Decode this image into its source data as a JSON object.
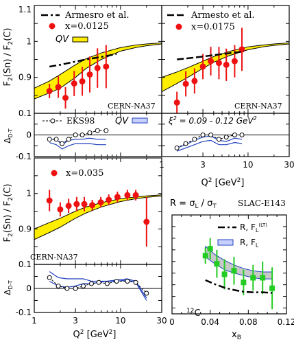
{
  "colors": {
    "data": "#ee1111",
    "band_fill": "#ffee00",
    "qv_blue": "#1f3fbf",
    "green": "#22cc22",
    "band_grey": "#c8c8c8",
    "text": "#000000"
  },
  "labels": {
    "ylabel_ratio": "F_2(Sn) / F_2(C)",
    "ylabel_delta": "Δ_D-T",
    "xlabel_q2": "Q^2 [GeV^2]",
    "xlabel_xb": "x_B",
    "armesto": "Armesro et al.",
    "armesto_b": "Armesto et al.",
    "qv": "QV",
    "eks98": "EKS98",
    "xi2": "ξ^2 = 0.09 - 0.12 GeV^2",
    "slac": "SLAC-E143",
    "r_def": "R = σ_L / σ_T",
    "r_lt": "R, F_L^(LT)",
    "r_fl": "R, F_L",
    "carbon": "^12C",
    "cern_na37": "CERN-NA37"
  },
  "chart_data": [
    {
      "type": "scatter",
      "panel": "ratio, x=0.0125",
      "x_scale": "log",
      "xlim": [
        1,
        30
      ],
      "ylim": [
        0.8,
        1.1
      ],
      "xticks": [
        1,
        3,
        10,
        30
      ],
      "yticks": [
        0.9,
        1
      ],
      "series": [
        {
          "name": "x=0.0125",
          "style": "points",
          "x": [
            1.5,
            1.9,
            2.3,
            2.9,
            3.6,
            4.4,
            5.4,
            6.8
          ],
          "y": [
            0.862,
            0.873,
            0.843,
            0.883,
            0.889,
            0.908,
            0.926,
            0.93
          ],
          "err": [
            0.02,
            0.03,
            0.03,
            0.035,
            0.04,
            0.05,
            0.055,
            0.06
          ]
        },
        {
          "name": "Armesro et al.",
          "style": "dash",
          "x": [
            1.5,
            2,
            3,
            4,
            6,
            9
          ],
          "y": [
            0.93,
            0.935,
            0.944,
            0.95,
            0.957,
            0.965
          ]
        },
        {
          "name": "QV",
          "style": "band",
          "x": [
            1.0,
            1.5,
            2,
            3,
            4,
            6,
            10,
            15,
            20,
            30
          ],
          "lo": [
            0.84,
            0.857,
            0.87,
            0.9,
            0.925,
            0.95,
            0.973,
            0.983,
            0.988,
            0.993
          ],
          "hi": [
            0.87,
            0.89,
            0.908,
            0.935,
            0.952,
            0.968,
            0.983,
            0.99,
            0.993,
            0.996
          ]
        }
      ]
    },
    {
      "type": "scatter",
      "panel": "ratio, x=0.0175",
      "x_scale": "log",
      "xlim": [
        1,
        30
      ],
      "ylim": [
        0.8,
        1.1
      ],
      "series": [
        {
          "name": "x=0.0175",
          "style": "points",
          "x": [
            1.5,
            1.9,
            2.4,
            3.0,
            3.7,
            4.6,
            5.6,
            7.0,
            8.5
          ],
          "y": [
            0.83,
            0.882,
            0.89,
            0.93,
            0.945,
            0.94,
            0.935,
            0.945,
            0.978
          ],
          "err": [
            0.03,
            0.035,
            0.035,
            0.035,
            0.04,
            0.045,
            0.045,
            0.045,
            0.06
          ]
        },
        {
          "name": "Armesto et al.",
          "style": "dash",
          "x": [
            1.5,
            2,
            3,
            4,
            6,
            9
          ],
          "y": [
            0.95,
            0.953,
            0.958,
            0.962,
            0.967,
            0.972
          ]
        },
        {
          "name": "QV",
          "style": "band",
          "x": [
            1.0,
            1.5,
            2,
            3,
            4,
            6,
            10,
            15,
            20,
            30
          ],
          "lo": [
            0.86,
            0.883,
            0.9,
            0.925,
            0.942,
            0.96,
            0.977,
            0.985,
            0.989,
            0.993
          ],
          "hi": [
            0.9,
            0.915,
            0.927,
            0.945,
            0.958,
            0.972,
            0.985,
            0.99,
            0.993,
            0.996
          ]
        }
      ]
    },
    {
      "type": "line",
      "panel": "delta, x=0.0125",
      "x_scale": "log",
      "xlim": [
        1,
        30
      ],
      "ylim": [
        -0.1,
        0.1
      ],
      "yticks": [
        -0.1,
        0,
        0.1
      ],
      "series": [
        {
          "name": "EKS98",
          "style": "circles",
          "x": [
            1.5,
            1.8,
            2.1,
            2.5,
            3.0,
            3.6,
            4.4,
            5.4,
            6.8
          ],
          "y": [
            -0.02,
            -0.02,
            -0.04,
            -0.02,
            0.0,
            0.0,
            0.01,
            0.02,
            0.02
          ]
        },
        {
          "name": "QV",
          "style": "blue",
          "x": [
            1.5,
            1.8,
            2.1,
            2.5,
            3.0,
            3.6,
            4.4,
            5.4,
            6.8
          ],
          "lo": [
            -0.035,
            -0.045,
            -0.065,
            -0.05,
            -0.04,
            -0.04,
            -0.04,
            -0.045,
            -0.045
          ],
          "hi": [
            -0.02,
            -0.02,
            -0.045,
            -0.025,
            -0.02,
            -0.02,
            -0.015,
            -0.02,
            -0.02
          ]
        }
      ]
    },
    {
      "type": "line",
      "panel": "delta, x=0.0175",
      "x_scale": "log",
      "xlim": [
        1,
        30
      ],
      "ylim": [
        -0.1,
        0.1
      ],
      "series": [
        {
          "name": "EKS98",
          "style": "circles",
          "x": [
            1.5,
            1.9,
            2.4,
            3.0,
            3.7,
            4.6,
            5.6,
            7.0,
            8.5
          ],
          "y": [
            -0.06,
            -0.04,
            -0.02,
            0.0,
            0.0,
            -0.02,
            -0.01,
            0.0,
            0.0
          ]
        },
        {
          "name": "QV",
          "style": "blue",
          "x": [
            1.5,
            1.9,
            2.4,
            3.0,
            3.7,
            4.6,
            5.6,
            7.0,
            8.5
          ],
          "lo": [
            -0.075,
            -0.06,
            -0.045,
            -0.03,
            -0.025,
            -0.045,
            -0.045,
            -0.035,
            -0.04
          ],
          "hi": [
            -0.06,
            -0.045,
            -0.025,
            -0.01,
            -0.005,
            -0.025,
            -0.03,
            -0.015,
            -0.02
          ]
        }
      ]
    },
    {
      "type": "scatter",
      "panel": "ratio, x=0.035",
      "x_scale": "log",
      "xlim": [
        1,
        30
      ],
      "ylim": [
        0.8,
        1.1
      ],
      "series": [
        {
          "name": "x=0.035",
          "style": "points",
          "x": [
            1.5,
            2.0,
            2.5,
            3.1,
            3.8,
            4.7,
            5.9,
            7.3,
            9.2,
            12,
            15,
            20
          ],
          "y": [
            0.98,
            0.955,
            0.965,
            0.97,
            0.97,
            0.967,
            0.975,
            0.982,
            0.99,
            0.995,
            0.995,
            0.92
          ],
          "err": [
            0.03,
            0.02,
            0.02,
            0.02,
            0.02,
            0.015,
            0.015,
            0.015,
            0.015,
            0.015,
            0.015,
            0.07
          ]
        },
        {
          "name": "QV",
          "style": "band",
          "x": [
            1.0,
            1.5,
            2,
            3,
            4,
            6,
            10,
            15,
            20,
            30
          ],
          "lo": [
            0.87,
            0.89,
            0.905,
            0.93,
            0.945,
            0.962,
            0.977,
            0.985,
            0.989,
            0.993
          ],
          "hi": [
            0.9,
            0.918,
            0.93,
            0.95,
            0.962,
            0.974,
            0.985,
            0.99,
            0.993,
            0.996
          ]
        }
      ]
    },
    {
      "type": "line",
      "panel": "delta, x=0.035",
      "x_scale": "log",
      "xlim": [
        1,
        30
      ],
      "ylim": [
        -0.1,
        0.1
      ],
      "series": [
        {
          "name": "EKS98",
          "style": "circles",
          "x": [
            1.5,
            1.9,
            2.4,
            3.0,
            3.7,
            4.6,
            5.6,
            7.0,
            9.0,
            12,
            15,
            20
          ],
          "y": [
            0.045,
            0.01,
            0.0,
            0.0,
            0.01,
            0.02,
            0.025,
            0.02,
            0.03,
            0.03,
            0.025,
            -0.02
          ]
        },
        {
          "name": "QV",
          "style": "blue",
          "x": [
            1.5,
            1.9,
            2.4,
            3.0,
            3.7,
            4.6,
            5.6,
            7.0,
            9.0,
            12,
            15,
            20
          ],
          "lo": [
            0.03,
            0.01,
            0.005,
            0.01,
            0.02,
            0.02,
            0.025,
            0.03,
            0.03,
            0.035,
            0.025,
            -0.05
          ],
          "hi": [
            0.07,
            0.045,
            0.04,
            0.04,
            0.04,
            0.03,
            0.03,
            0.03,
            0.035,
            0.04,
            0.03,
            -0.04
          ]
        }
      ]
    },
    {
      "type": "scatter",
      "panel": "R vs x_B",
      "xlim": [
        0,
        0.12
      ],
      "ylim": [
        -0.05,
        0.8
      ],
      "xticks": [
        0,
        0.04,
        0.08,
        0.12
      ],
      "series": [
        {
          "name": "SLAC-E143 data",
          "style": "points",
          "x": [
            0.035,
            0.04,
            0.047,
            0.055,
            0.065,
            0.075,
            0.085,
            0.095,
            0.105
          ],
          "y": [
            0.45,
            0.51,
            0.38,
            0.29,
            0.32,
            0.22,
            0.26,
            0.26,
            0.17
          ],
          "err": [
            0.07,
            0.09,
            0.12,
            0.13,
            0.12,
            0.11,
            0.11,
            0.14,
            0.18
          ]
        },
        {
          "name": "R, F_L^(LT)",
          "style": "dash",
          "x": [
            0.035,
            0.045,
            0.055,
            0.065,
            0.075,
            0.085,
            0.095,
            0.105
          ],
          "y": [
            0.24,
            0.205,
            0.175,
            0.155,
            0.14,
            0.135,
            0.135,
            0.13
          ]
        },
        {
          "name": "R, F_L",
          "style": "band",
          "x": [
            0.035,
            0.045,
            0.055,
            0.065,
            0.075,
            0.085,
            0.095,
            0.105
          ],
          "lo": [
            0.44,
            0.38,
            0.33,
            0.3,
            0.28,
            0.26,
            0.25,
            0.25
          ],
          "hi": [
            0.53,
            0.46,
            0.41,
            0.37,
            0.34,
            0.32,
            0.31,
            0.31
          ]
        }
      ]
    }
  ]
}
